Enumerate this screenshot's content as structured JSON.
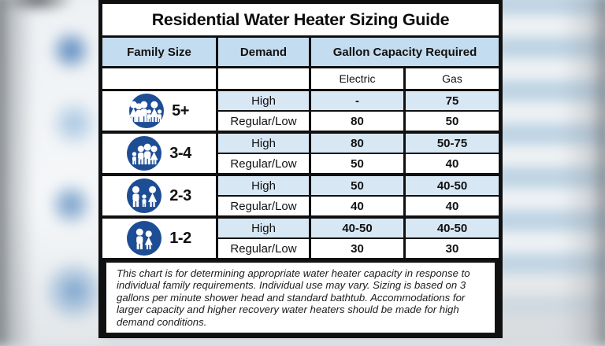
{
  "title": "Residential Water Heater Sizing Guide",
  "table": {
    "columns": [
      "Family Size",
      "Demand",
      "Gallon Capacity Required"
    ],
    "sub_columns": [
      "Electric",
      "Gas"
    ],
    "groups": [
      {
        "family_size": "5+",
        "figures": [
          "woman",
          "man",
          "man",
          "child",
          "woman",
          "child"
        ],
        "rows": [
          {
            "demand": "High",
            "electric": "-",
            "gas": "75"
          },
          {
            "demand": "Regular/Low",
            "electric": "80",
            "gas": "50"
          }
        ]
      },
      {
        "family_size": "3-4",
        "figures": [
          "child",
          "man",
          "man",
          "woman"
        ],
        "rows": [
          {
            "demand": "High",
            "electric": "80",
            "gas": "50-75"
          },
          {
            "demand": "Regular/Low",
            "electric": "50",
            "gas": "40"
          }
        ]
      },
      {
        "family_size": "2-3",
        "figures": [
          "man",
          "child",
          "woman"
        ],
        "rows": [
          {
            "demand": "High",
            "electric": "50",
            "gas": "40-50"
          },
          {
            "demand": "Regular/Low",
            "electric": "40",
            "gas": "40"
          }
        ]
      },
      {
        "family_size": "1-2",
        "figures": [
          "man",
          "woman"
        ],
        "rows": [
          {
            "demand": "High",
            "electric": "40-50",
            "gas": "40-50"
          },
          {
            "demand": "Regular/Low",
            "electric": "30",
            "gas": "30"
          }
        ]
      }
    ]
  },
  "footnote": "This chart is for determining appropriate water heater capacity in response to individual family requirements.  Individual use may vary.  Sizing is based on 3 gallons per minute shower head and standard bathtub.  Accommodations for larger capacity and higher recovery water heaters should be made for high demand conditions.",
  "colors": {
    "header_bg": "#c4dcef",
    "high_row_bg": "#d8e7f4",
    "icon_blue": "#1d4d94",
    "border_black": "#101010"
  },
  "chart_data": {
    "type": "table",
    "title": "Residential Water Heater Sizing Guide",
    "columns": [
      "Family Size",
      "Demand",
      "Electric",
      "Gas"
    ],
    "rows": [
      [
        "5+",
        "High",
        "-",
        "75"
      ],
      [
        "5+",
        "Regular/Low",
        "80",
        "50"
      ],
      [
        "3-4",
        "High",
        "80",
        "50-75"
      ],
      [
        "3-4",
        "Regular/Low",
        "50",
        "40"
      ],
      [
        "2-3",
        "High",
        "50",
        "40-50"
      ],
      [
        "2-3",
        "Regular/Low",
        "40",
        "40"
      ],
      [
        "1-2",
        "High",
        "40-50",
        "40-50"
      ],
      [
        "1-2",
        "Regular/Low",
        "30",
        "30"
      ]
    ],
    "legend_position": "none",
    "grid": true
  }
}
